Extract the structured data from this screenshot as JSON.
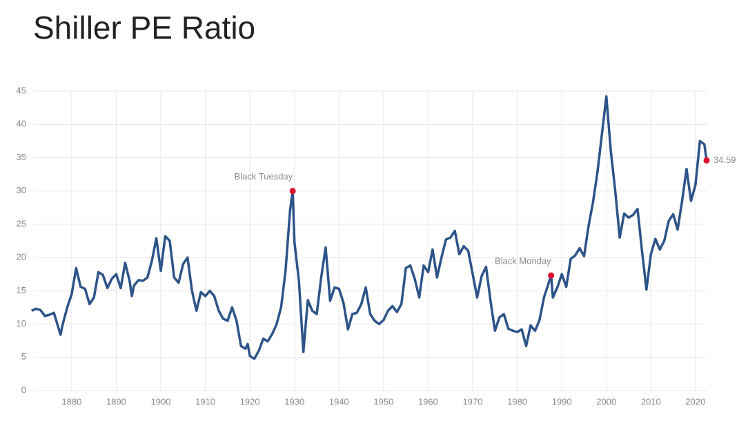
{
  "chart_data": {
    "type": "line",
    "title": "Shiller PE Ratio",
    "x": [
      1871,
      1872,
      1873,
      1874,
      1875,
      1876,
      1877,
      1877.5,
      1878,
      1879,
      1880,
      1881,
      1882,
      1883,
      1884,
      1885,
      1886,
      1887,
      1888,
      1889,
      1890,
      1891,
      1892,
      1893,
      1893.5,
      1894,
      1895,
      1896,
      1897,
      1898,
      1899,
      1900,
      1901,
      1902,
      1903,
      1904,
      1905,
      1906,
      1907,
      1908,
      1909,
      1910,
      1911,
      1912,
      1913,
      1914,
      1915,
      1916,
      1917,
      1918,
      1919,
      1919.5,
      1920,
      1921,
      1922,
      1923,
      1924,
      1925,
      1926,
      1927,
      1928,
      1929,
      1929.6,
      1930,
      1931,
      1932,
      1933,
      1934,
      1935,
      1936,
      1937,
      1938,
      1939,
      1940,
      1941,
      1942,
      1943,
      1944,
      1945,
      1946,
      1947,
      1948,
      1949,
      1950,
      1951,
      1952,
      1953,
      1954,
      1955,
      1956,
      1957,
      1958,
      1959,
      1960,
      1961,
      1962,
      1963,
      1964,
      1965,
      1966,
      1967,
      1968,
      1969,
      1970,
      1971,
      1972,
      1973,
      1974,
      1975,
      1976,
      1977,
      1978,
      1979,
      1980,
      1981,
      1982,
      1983,
      1984,
      1985,
      1986,
      1987.6,
      1988,
      1989,
      1990,
      1991,
      1992,
      1993,
      1994,
      1995,
      1996,
      1997,
      1998,
      1999,
      2000,
      2001,
      2002,
      2003,
      2004,
      2005,
      2006,
      2007,
      2008,
      2009,
      2010,
      2011,
      2012,
      2013,
      2014,
      2015,
      2016,
      2017,
      2018,
      2019,
      2020,
      2021,
      2022,
      2022.5
    ],
    "series": [
      {
        "name": "Shiller PE Ratio",
        "color": "#2c5489",
        "values": [
          12.0,
          12.3,
          12.1,
          11.2,
          11.4,
          11.7,
          9.5,
          8.4,
          10.0,
          12.5,
          14.5,
          18.4,
          15.6,
          15.3,
          13.0,
          14.0,
          17.8,
          17.4,
          15.4,
          16.8,
          17.5,
          15.4,
          19.2,
          16.5,
          14.2,
          15.8,
          16.6,
          16.5,
          17.0,
          19.5,
          22.9,
          18.0,
          23.2,
          22.5,
          17.0,
          16.2,
          19.0,
          20.0,
          15.0,
          12.0,
          14.8,
          14.2,
          15.0,
          14.2,
          12.0,
          10.8,
          10.5,
          12.5,
          10.5,
          6.7,
          6.3,
          7.0,
          5.2,
          4.8,
          6.0,
          7.8,
          7.4,
          8.5,
          10.0,
          12.5,
          18.0,
          27.0,
          30.0,
          22.3,
          16.5,
          5.8,
          13.6,
          12.0,
          11.5,
          17.0,
          21.5,
          13.5,
          15.5,
          15.3,
          13.2,
          9.2,
          11.5,
          11.7,
          13.0,
          15.5,
          11.5,
          10.5,
          10.0,
          10.6,
          12.0,
          12.7,
          11.8,
          13.0,
          18.4,
          18.8,
          16.8,
          14.0,
          18.8,
          17.8,
          21.2,
          17.0,
          20.0,
          22.7,
          23.0,
          24.0,
          20.5,
          21.7,
          21.0,
          17.5,
          14.0,
          17.2,
          18.6,
          13.5,
          9.0,
          11.0,
          11.5,
          9.3,
          9.0,
          8.8,
          9.2,
          6.7,
          9.8,
          9.0,
          10.6,
          14.0,
          17.3,
          14.0,
          15.5,
          17.5,
          15.6,
          19.8,
          20.3,
          21.4,
          20.2,
          24.7,
          28.3,
          32.8,
          38.5,
          44.2,
          36.0,
          30.0,
          23.0,
          26.6,
          26.0,
          26.4,
          27.3,
          21.0,
          15.2,
          20.5,
          22.8,
          21.2,
          22.5,
          25.5,
          26.5,
          24.2,
          28.5,
          33.3,
          28.5,
          30.9,
          37.5,
          37.0,
          34.59
        ]
      }
    ],
    "annotations": [
      {
        "label": "Black Tuesday",
        "x": 1929.6,
        "value": 30.0
      },
      {
        "label": "Black Monday",
        "x": 1987.6,
        "value": 17.3
      },
      {
        "x": 2022.5,
        "value": 34.59,
        "value_label": "34.59"
      }
    ],
    "marker_color": "#e0102f",
    "xlim": [
      1871.5,
      2022.5
    ],
    "ylim": [
      0,
      45
    ],
    "xticks": [
      1880,
      1890,
      1900,
      1910,
      1920,
      1930,
      1940,
      1950,
      1960,
      1970,
      1980,
      1990,
      2000,
      2010,
      2020
    ],
    "yticks": [
      0,
      5,
      10,
      15,
      20,
      25,
      30,
      35,
      40,
      45
    ],
    "grid": true
  }
}
